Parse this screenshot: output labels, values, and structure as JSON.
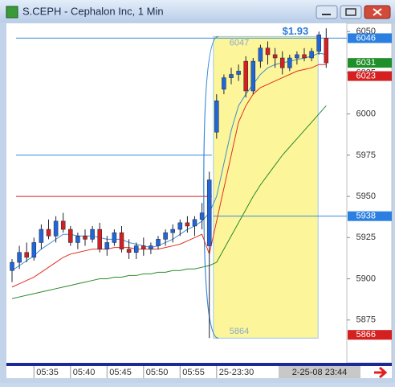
{
  "window": {
    "title": "S.CEPH - Cephalon Inc, 1 Min"
  },
  "chart_data": {
    "type": "candlestick",
    "categories": [
      null,
      null,
      null,
      "05:35",
      null,
      null,
      null,
      null,
      "05:40",
      null,
      null,
      null,
      null,
      "05:45",
      null,
      null,
      null,
      null,
      "05:50",
      null,
      null,
      null,
      null,
      "05:55",
      null,
      null,
      null,
      null,
      "25-23:30",
      null,
      null,
      null,
      null,
      null,
      null,
      null,
      null,
      null,
      null,
      null,
      null,
      null,
      null,
      null
    ],
    "open": [
      5905,
      5910,
      5916,
      5913,
      5922,
      5930,
      5926,
      5935,
      5930,
      5922,
      5926,
      5924,
      5930,
      5918,
      5922,
      5928,
      5918,
      5916,
      5920,
      5918,
      5920,
      5924,
      5928,
      5930,
      5934,
      5932,
      5936,
      5920,
      5989,
      6015,
      6022,
      6024,
      6032,
      6014,
      6032,
      6040,
      6036,
      6034,
      6028,
      6034,
      6036,
      6034,
      6038,
      6046
    ],
    "high": [
      5912,
      5920,
      5922,
      5925,
      5933,
      5936,
      5938,
      5940,
      5932,
      5928,
      5930,
      5932,
      5934,
      5926,
      5930,
      5932,
      5924,
      5922,
      5925,
      5922,
      5926,
      5930,
      5933,
      5936,
      5938,
      5938,
      5946,
      5965,
      6012,
      6024,
      6028,
      6030,
      6035,
      6034,
      6042,
      6044,
      6040,
      6038,
      6036,
      6038,
      6040,
      6040,
      6050,
      6052
    ],
    "low": [
      5898,
      5906,
      5910,
      5911,
      5918,
      5924,
      5922,
      5928,
      5920,
      5918,
      5920,
      5922,
      5916,
      5914,
      5920,
      5916,
      5912,
      5912,
      5914,
      5915,
      5918,
      5920,
      5922,
      5926,
      5928,
      5926,
      5930,
      5864,
      5985,
      6012,
      6018,
      6020,
      6010,
      6012,
      6028,
      6030,
      6028,
      6024,
      6026,
      6030,
      6032,
      6032,
      6036,
      6028
    ],
    "close": [
      5910,
      5916,
      5913,
      5922,
      5930,
      5926,
      5935,
      5930,
      5922,
      5926,
      5924,
      5930,
      5918,
      5922,
      5928,
      5918,
      5916,
      5920,
      5918,
      5920,
      5924,
      5928,
      5930,
      5934,
      5932,
      5936,
      5940,
      5960,
      6008,
      6022,
      6024,
      6026,
      6014,
      6032,
      6040,
      6036,
      6034,
      6028,
      6034,
      6036,
      6034,
      6038,
      6048,
      6031
    ],
    "up_color": "#2066d8",
    "down_color": "#d42020",
    "moving_averages": [
      {
        "color": "#3d8fd0",
        "values": [
          5905,
          5908,
          5911,
          5914,
          5918,
          5921,
          5924,
          5927,
          5927,
          5926,
          5926,
          5926,
          5925,
          5924,
          5924,
          5924,
          5922,
          5921,
          5920,
          5919,
          5920,
          5922,
          5924,
          5927,
          5930,
          5932,
          5935,
          5940,
          5950,
          5970,
          5990,
          6005,
          6012,
          6018,
          6024,
          6028,
          6030,
          6031,
          6032,
          6033,
          6034,
          6035,
          6037,
          6036
        ]
      },
      {
        "color": "#e03020",
        "values": [
          5895,
          5897,
          5899,
          5901,
          5904,
          5907,
          5910,
          5913,
          5915,
          5916,
          5917,
          5918,
          5918,
          5918,
          5919,
          5919,
          5919,
          5918,
          5918,
          5918,
          5918,
          5919,
          5920,
          5921,
          5923,
          5925,
          5927,
          5915,
          5935,
          5955,
          5975,
          5995,
          6005,
          6012,
          6016,
          6018,
          6020,
          6022,
          6024,
          6026,
          6027,
          6028,
          6030,
          6030
        ]
      },
      {
        "color": "#2a8a2a",
        "values": [
          5888,
          5889,
          5890,
          5891,
          5892,
          5893,
          5894,
          5895,
          5896,
          5897,
          5898,
          5899,
          5900,
          5900,
          5901,
          5901,
          5902,
          5902,
          5903,
          5903,
          5904,
          5904,
          5905,
          5905,
          5906,
          5906,
          5907,
          5908,
          5910,
          5918,
          5926,
          5934,
          5942,
          5950,
          5957,
          5963,
          5969,
          5975,
          5980,
          5985,
          5990,
          5995,
          6000,
          6005
        ]
      }
    ],
    "levels": [
      {
        "value": 5975,
        "color": "#3a8ad8",
        "side": "left"
      },
      {
        "value": 5950,
        "color": "#d42020",
        "side": "left"
      },
      {
        "value": 6046,
        "color": "#3a8ad8",
        "side": "full"
      },
      {
        "value": 5938,
        "color": "#3a8ad8",
        "side": "right"
      }
    ],
    "selection": {
      "high": 6047,
      "low": 5864,
      "change_label": "$1.93"
    },
    "price_markers": [
      {
        "value": 6046,
        "color": "#2b7fe0"
      },
      {
        "value": 6031,
        "color": "#1f8f2a"
      },
      {
        "value": 6023,
        "color": "#d42020"
      },
      {
        "value": 5938,
        "color": "#2b7fe0"
      },
      {
        "value": 5866,
        "color": "#d42020"
      }
    ],
    "ylim": [
      5849,
      6055
    ],
    "yticks": [
      6050,
      6025,
      6000,
      5975,
      5950,
      5925,
      5900,
      5875
    ],
    "cursor_time": "2-25-08 23:44"
  }
}
